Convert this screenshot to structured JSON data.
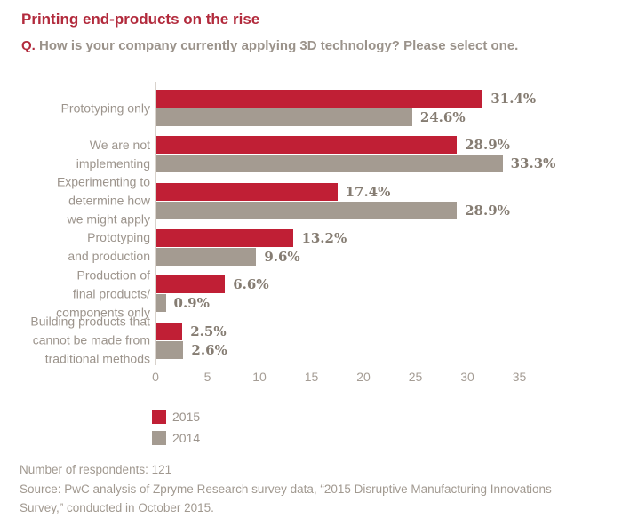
{
  "header": {
    "title": "Printing end-products on the rise",
    "question_prefix": "Q.",
    "question": " How is your company currently applying 3D technology? Please select one."
  },
  "chart_data": {
    "type": "bar",
    "orientation": "horizontal",
    "title": "Printing end-products on the rise",
    "xlabel": "",
    "ylabel": "",
    "xlim": [
      0,
      35
    ],
    "x_ticks": [
      0,
      5,
      10,
      15,
      20,
      25,
      30,
      35
    ],
    "grid": false,
    "legend_position": "bottom-left",
    "categories": [
      "Prototyping only",
      "We are not implementing",
      "Experimenting to determine how we might apply",
      "Prototyping and production",
      "Production of final products/ components only",
      "Building products that cannot be made from traditional methods"
    ],
    "category_lines": [
      [
        "Prototyping only"
      ],
      [
        "We are not",
        "implementing"
      ],
      [
        "Experimenting to",
        "determine how",
        "we might apply"
      ],
      [
        "Prototyping",
        "and production"
      ],
      [
        "Production of",
        "final products/",
        "components only"
      ],
      [
        "Building products that",
        "cannot be made from",
        "traditional methods"
      ]
    ],
    "series": [
      {
        "name": "2015",
        "color": "#c01f35",
        "values": [
          31.4,
          28.9,
          17.4,
          13.2,
          6.6,
          2.5
        ],
        "labels": [
          "31.4%",
          "28.9%",
          "17.4%",
          "13.2%",
          "6.6%",
          "2.5%"
        ]
      },
      {
        "name": "2014",
        "color": "#a49b91",
        "values": [
          24.6,
          33.3,
          28.9,
          9.6,
          0.9,
          2.6
        ],
        "labels": [
          "24.6%",
          "33.3%",
          "28.9%",
          "9.6%",
          "0.9%",
          "2.6%"
        ]
      }
    ]
  },
  "footer": {
    "respondents": "Number of respondents: 121",
    "source_line1": "Source: PwC analysis of Zpryme Research survey data, “2015 Disruptive Manufacturing Innovations",
    "source_line2": "Survey,” conducted in October 2015."
  },
  "colors": {
    "title_red": "#b22a3c",
    "bar_2015_red": "#c01f35",
    "bar_2014_taupe": "#a49b91",
    "category_label_gray": "#9c948c",
    "value_label_gray": "#857c72",
    "axis_line_gray": "#d8d2cc",
    "footer_gray": "#a19990"
  }
}
